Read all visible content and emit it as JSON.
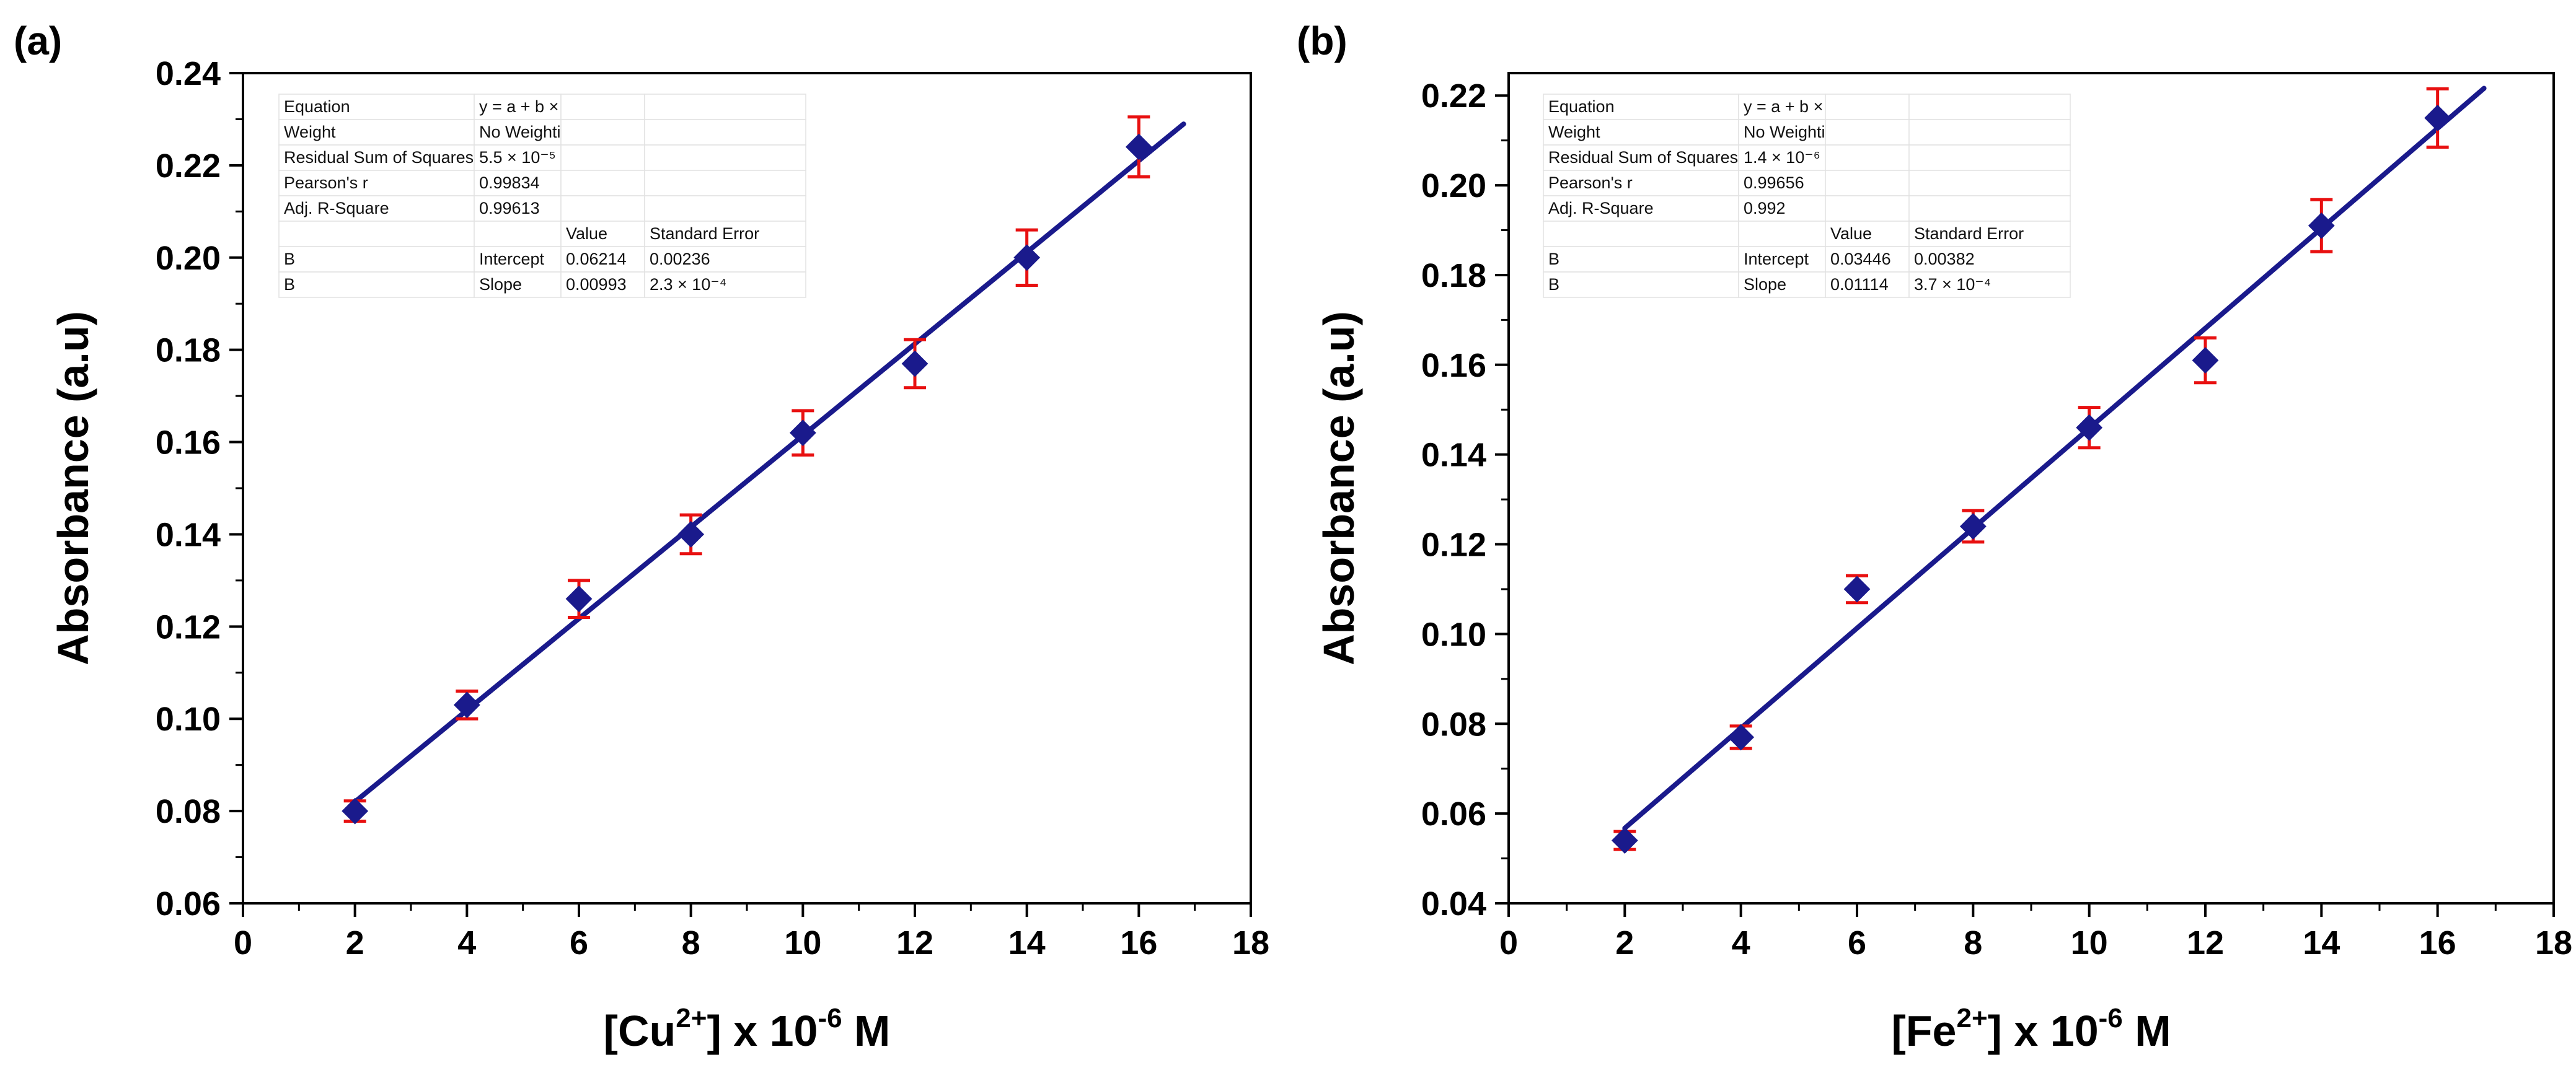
{
  "chart_data": [
    {
      "panel": "(a)",
      "type": "scatter",
      "xlabel_prefix": "[Cu",
      "xlabel_sup": "2+",
      "xlabel_mid": "] x 10",
      "xlabel_exp": "-6",
      "xlabel_suffix": " M",
      "ylabel": "Absorbance (a.u)",
      "xlim": [
        0,
        18
      ],
      "ylim": [
        0.06,
        0.24
      ],
      "xticks": [
        0,
        2,
        4,
        6,
        8,
        10,
        12,
        14,
        16,
        18
      ],
      "yticks": [
        "0.06",
        "0.08",
        "0.10",
        "0.12",
        "0.14",
        "0.16",
        "0.18",
        "0.20",
        "0.22",
        "0.24"
      ],
      "x": [
        2,
        4,
        6,
        8,
        10,
        12,
        14,
        16
      ],
      "y": [
        0.08,
        0.103,
        0.126,
        0.14,
        0.162,
        0.177,
        0.2,
        0.224
      ],
      "yerr": [
        0.0022,
        0.003,
        0.004,
        0.0042,
        0.0048,
        0.0052,
        0.006,
        0.0065
      ],
      "fit": {
        "intercept": 0.06214,
        "slope": 0.00993,
        "x_start": 2,
        "x_end": 16.8
      },
      "colors": {
        "marker": "#1a1a8c",
        "line": "#1a1a8c",
        "errorbar": "#e81010"
      },
      "fit_table": {
        "rows": [
          [
            "Equation",
            "y = a + b × x",
            "",
            ""
          ],
          [
            "Weight",
            "No Weighting",
            "",
            ""
          ],
          [
            "Residual Sum of Squares",
            "5.5 × 10⁻⁵",
            "",
            ""
          ],
          [
            "Pearson's r",
            "0.99834",
            "",
            ""
          ],
          [
            "Adj. R-Square",
            "0.99613",
            "",
            ""
          ],
          [
            "",
            "",
            "Value",
            "Standard Error"
          ],
          [
            "B",
            "Intercept",
            "0.06214",
            "0.00236"
          ],
          [
            "B",
            "Slope",
            "0.00993",
            "2.3 × 10⁻⁴"
          ]
        ]
      }
    },
    {
      "panel": "(b)",
      "type": "scatter",
      "xlabel_prefix": "[Fe",
      "xlabel_sup": "2+",
      "xlabel_mid": "] x 10",
      "xlabel_exp": "-6",
      "xlabel_suffix": " M",
      "ylabel": "Absorbance (a.u)",
      "xlim": [
        0,
        18
      ],
      "ylim": [
        0.04,
        0.225
      ],
      "xticks": [
        0,
        2,
        4,
        6,
        8,
        10,
        12,
        14,
        16,
        18
      ],
      "yticks": [
        "0.04",
        "0.06",
        "0.08",
        "0.10",
        "0.12",
        "0.14",
        "0.16",
        "0.18",
        "0.20",
        "0.22"
      ],
      "x": [
        2,
        4,
        6,
        8,
        10,
        12,
        14,
        16
      ],
      "y": [
        0.054,
        0.077,
        0.11,
        0.124,
        0.146,
        0.161,
        0.191,
        0.215
      ],
      "yerr": [
        0.002,
        0.0025,
        0.003,
        0.0035,
        0.0045,
        0.005,
        0.0058,
        0.0065
      ],
      "fit": {
        "intercept": 0.03446,
        "slope": 0.01114,
        "x_start": 2,
        "x_end": 16.8
      },
      "colors": {
        "marker": "#1a1a8c",
        "line": "#1a1a8c",
        "errorbar": "#e81010"
      },
      "fit_table": {
        "rows": [
          [
            "Equation",
            "y = a + b × x",
            "",
            ""
          ],
          [
            "Weight",
            "No Weighting",
            "",
            ""
          ],
          [
            "Residual Sum of Squares",
            "1.4 × 10⁻⁶",
            "",
            ""
          ],
          [
            "Pearson's r",
            "0.99656",
            "",
            ""
          ],
          [
            "Adj. R-Square",
            "0.992",
            "",
            ""
          ],
          [
            "",
            "",
            "Value",
            "Standard Error"
          ],
          [
            "B",
            "Intercept",
            "0.03446",
            "0.00382"
          ],
          [
            "B",
            "Slope",
            "0.01114",
            "3.7 × 10⁻⁴"
          ]
        ]
      }
    }
  ]
}
